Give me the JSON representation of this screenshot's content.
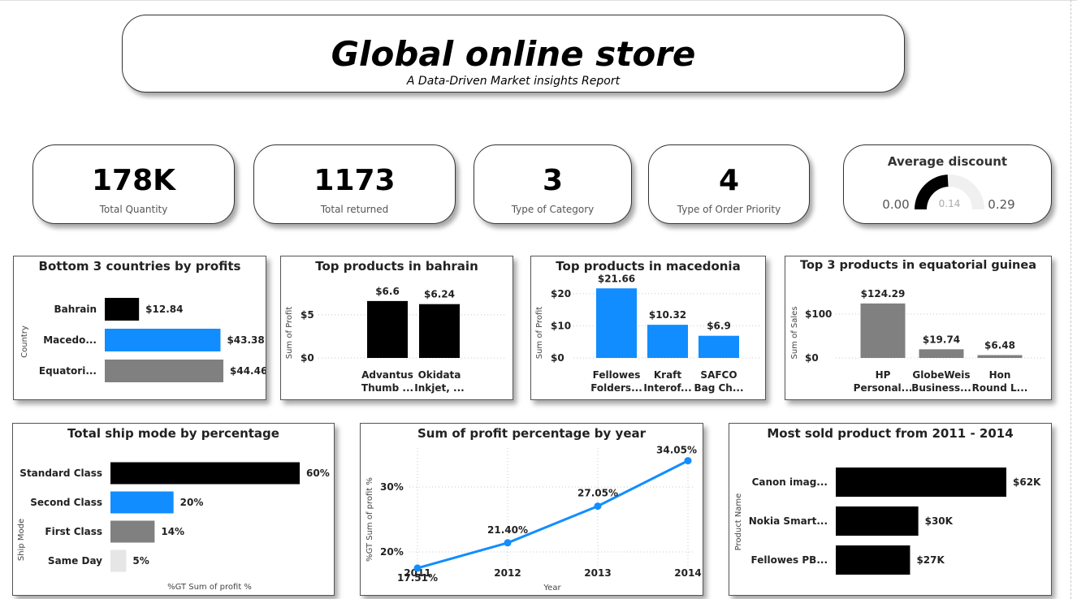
{
  "header": {
    "title": "Global online store",
    "subtitle": "A Data-Driven Market insights Report"
  },
  "kpis": [
    {
      "value": "178K",
      "label": "Total Quantity"
    },
    {
      "value": "1173",
      "label": "Total returned"
    },
    {
      "value": "3",
      "label": "Type of Category"
    },
    {
      "value": "4",
      "label": "Type of Order Priority"
    }
  ],
  "gauge": {
    "title": "Average discount",
    "min_label": "0.00",
    "value_label": "0.14",
    "max_label": "0.29",
    "value": 0.14,
    "max": 0.29
  },
  "colors": {
    "black": "#000000",
    "blue": "#118DFF",
    "gray": "#808080",
    "lightgray": "#E6E6E6"
  },
  "chart_data": [
    {
      "id": "bottom3",
      "type": "bar",
      "orientation": "horizontal",
      "title": "Bottom 3 countries by profits",
      "ylabel": "Country",
      "categories": [
        "Bahrain",
        "Macedo...",
        "Equatori..."
      ],
      "values": [
        12.84,
        43.38,
        44.46
      ],
      "labels": [
        "$12.84",
        "$43.38",
        "$44.46"
      ],
      "colors": [
        "#000000",
        "#118DFF",
        "#808080"
      ]
    },
    {
      "id": "bahrain",
      "type": "bar",
      "title": "Top products in bahrain",
      "ylabel": "Sum of Profit",
      "categories": [
        [
          "Advantus",
          "Thumb ..."
        ],
        [
          "Okidata",
          "Inkjet, ..."
        ]
      ],
      "values": [
        6.6,
        6.24
      ],
      "labels": [
        "$6.6",
        "$6.24"
      ],
      "ticks": [
        "$0",
        "$5"
      ],
      "tick_values": [
        0,
        5
      ],
      "ylim": [
        0,
        8
      ],
      "color": "#000000"
    },
    {
      "id": "macedonia",
      "type": "bar",
      "title": "Top products in macedonia",
      "ylabel": "Sum of Profit",
      "categories": [
        [
          "Fellowes",
          "Folders..."
        ],
        [
          "Kraft",
          "Interof..."
        ],
        [
          "SAFCO",
          "Bag Ch..."
        ]
      ],
      "values": [
        21.66,
        10.32,
        6.9
      ],
      "labels": [
        "$21.66",
        "$10.32",
        "$6.9"
      ],
      "ticks": [
        "$0",
        "$10",
        "$20"
      ],
      "tick_values": [
        0,
        10,
        20
      ],
      "ylim": [
        0,
        24
      ],
      "color": "#118DFF"
    },
    {
      "id": "eqguinea",
      "type": "bar",
      "title": "Top 3 products in equatorial guinea",
      "ylabel": "Sum of Sales",
      "categories": [
        [
          "HP",
          "Personal..."
        ],
        [
          "GlobeWeis",
          "Business..."
        ],
        [
          "Hon",
          "Round L..."
        ]
      ],
      "values": [
        124.29,
        19.74,
        6.48
      ],
      "labels": [
        "$124.29",
        "$19.74",
        "$6.48"
      ],
      "ticks": [
        "$0",
        "$100"
      ],
      "tick_values": [
        0,
        100
      ],
      "ylim": [
        0,
        150
      ],
      "color": "#808080"
    },
    {
      "id": "shipmode",
      "type": "bar",
      "orientation": "horizontal",
      "title": "Total ship mode by percentage",
      "ylabel": "Ship Mode",
      "xlabel": "%GT Sum of profit %",
      "categories": [
        "Standard Class",
        "Second Class",
        "First Class",
        "Same Day"
      ],
      "values": [
        60,
        20,
        14,
        5
      ],
      "labels": [
        "60%",
        "20%",
        "14%",
        "5%"
      ],
      "colors": [
        "#000000",
        "#118DFF",
        "#808080",
        "#E6E6E6"
      ]
    },
    {
      "id": "profitpct",
      "type": "line",
      "title": "Sum of profit percentage by year",
      "ylabel": "%GT Sum of profit %",
      "xlabel": "Year",
      "x": [
        "2011",
        "2012",
        "2013",
        "2014"
      ],
      "values": [
        17.51,
        21.4,
        27.05,
        34.05
      ],
      "labels": [
        "17.51%",
        "21.40%",
        "27.05%",
        "34.05%"
      ],
      "ticks": [
        "20%",
        "30%"
      ],
      "tick_values": [
        20,
        30
      ],
      "ylim": [
        16,
        35
      ],
      "color": "#118DFF"
    },
    {
      "id": "mostsold",
      "type": "bar",
      "orientation": "horizontal",
      "title": "Most sold product from 2011 - 2014",
      "ylabel": "Product Name",
      "categories": [
        "Canon imag...",
        "Nokia Smart...",
        "Fellowes PB..."
      ],
      "values": [
        62,
        30,
        27
      ],
      "labels": [
        "$62K",
        "$30K",
        "$27K"
      ],
      "color": "#000000"
    }
  ]
}
